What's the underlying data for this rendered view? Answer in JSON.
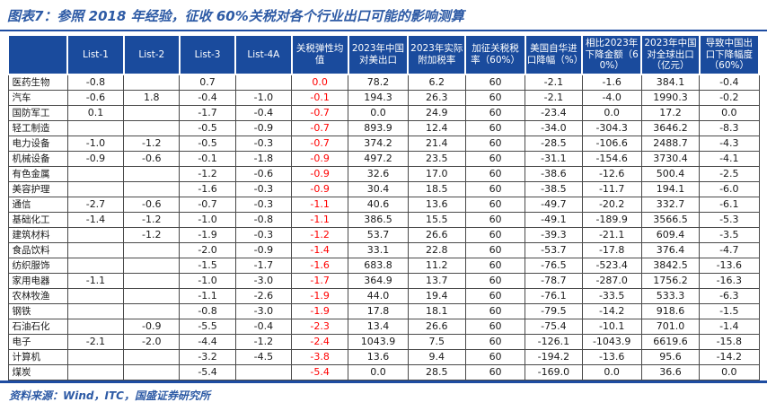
{
  "title": "图表7：参照 2018 年经验，征收 60%关税对各个行业出口可能的影响测算",
  "source": "资料来源：Wind，ITC，国盛证券研究所",
  "colors": {
    "header_bg": "#1a4b9d",
    "title_blue": "#2d5aa5",
    "rule_blue": "#1e4ca1",
    "elasticity_red": "#ff0000"
  },
  "chart_data": {
    "type": "table",
    "title": "参照2018年经验，征收60%关税对各个行业出口可能的影响测算",
    "red_column_index": 4,
    "columns": [
      "",
      "List-1",
      "List-2",
      "List-3",
      "List-4A",
      "关税弹性均值",
      "2023年中国对美出口",
      "2023年实际附加税率",
      "加征关税税率（60%）",
      "美国自华进口降幅（%）",
      "相比2023年下降金额（60%）",
      "2023年中国对全球出口（亿元）",
      "导致中国出口下降幅度（60%）"
    ],
    "rows": [
      {
        "industry": "医药生物",
        "values": [
          "-0.8",
          "",
          "0.7",
          "",
          "0.0",
          "78.2",
          "6.2",
          "60",
          "-2.1",
          "-1.6",
          "384.1",
          "-0.4"
        ]
      },
      {
        "industry": "汽车",
        "values": [
          "-0.6",
          "1.8",
          "-0.4",
          "-1.0",
          "-0.1",
          "194.3",
          "26.3",
          "60",
          "-2.1",
          "-4.0",
          "1990.3",
          "-0.2"
        ]
      },
      {
        "industry": "国防军工",
        "values": [
          "0.1",
          "",
          "-1.7",
          "-0.4",
          "-0.7",
          "0.0",
          "24.9",
          "60",
          "-23.4",
          "0.0",
          "17.2",
          "0.0"
        ]
      },
      {
        "industry": "轻工制造",
        "values": [
          "",
          "",
          "-0.5",
          "-0.9",
          "-0.7",
          "893.9",
          "12.4",
          "60",
          "-34.0",
          "-304.3",
          "3646.2",
          "-8.3"
        ]
      },
      {
        "industry": "电力设备",
        "values": [
          "-1.0",
          "-1.2",
          "-0.5",
          "-0.3",
          "-0.7",
          "374.2",
          "21.4",
          "60",
          "-28.5",
          "-106.6",
          "2488.7",
          "-4.3"
        ]
      },
      {
        "industry": "机械设备",
        "values": [
          "-0.9",
          "-0.6",
          "-0.1",
          "-1.8",
          "-0.9",
          "497.2",
          "23.5",
          "60",
          "-31.1",
          "-154.6",
          "3730.4",
          "-4.1"
        ]
      },
      {
        "industry": "有色金属",
        "values": [
          "",
          "",
          "-1.2",
          "-0.6",
          "-0.9",
          "32.6",
          "17.0",
          "60",
          "-38.6",
          "-12.6",
          "500.4",
          "-2.5"
        ]
      },
      {
        "industry": "美容护理",
        "values": [
          "",
          "",
          "-1.6",
          "-0.3",
          "-0.9",
          "30.4",
          "18.5",
          "60",
          "-38.5",
          "-11.7",
          "194.1",
          "-6.0"
        ]
      },
      {
        "industry": "通信",
        "values": [
          "-2.7",
          "-0.6",
          "-0.7",
          "-0.3",
          "-1.1",
          "40.6",
          "13.6",
          "60",
          "-49.7",
          "-20.2",
          "332.7",
          "-6.1"
        ]
      },
      {
        "industry": "基础化工",
        "values": [
          "-1.4",
          "-1.2",
          "-1.0",
          "-0.8",
          "-1.1",
          "386.5",
          "15.5",
          "60",
          "-49.1",
          "-189.9",
          "3566.5",
          "-5.3"
        ]
      },
      {
        "industry": "建筑材料",
        "values": [
          "",
          "-1.2",
          "-1.9",
          "-0.3",
          "-1.2",
          "53.7",
          "26.6",
          "60",
          "-39.3",
          "-21.1",
          "609.4",
          "-3.5"
        ]
      },
      {
        "industry": "食品饮料",
        "values": [
          "",
          "",
          "-2.0",
          "-0.9",
          "-1.4",
          "33.1",
          "22.8",
          "60",
          "-53.7",
          "-17.8",
          "376.4",
          "-4.7"
        ]
      },
      {
        "industry": "纺织服饰",
        "values": [
          "",
          "",
          "-1.5",
          "-1.7",
          "-1.6",
          "683.8",
          "11.2",
          "60",
          "-76.5",
          "-523.4",
          "3842.5",
          "-13.6"
        ]
      },
      {
        "industry": "家用电器",
        "values": [
          "-1.1",
          "",
          "-1.0",
          "-3.0",
          "-1.7",
          "364.9",
          "13.7",
          "60",
          "-78.7",
          "-287.0",
          "1756.2",
          "-16.3"
        ]
      },
      {
        "industry": "农林牧渔",
        "values": [
          "",
          "",
          "-1.1",
          "-2.6",
          "-1.9",
          "44.0",
          "19.4",
          "60",
          "-76.1",
          "-33.5",
          "533.3",
          "-6.3"
        ]
      },
      {
        "industry": "钢铁",
        "values": [
          "",
          "",
          "-0.8",
          "-3.0",
          "-1.9",
          "17.8",
          "18.1",
          "60",
          "-79.5",
          "-14.2",
          "918.6",
          "-1.5"
        ]
      },
      {
        "industry": "石油石化",
        "values": [
          "",
          "-0.9",
          "-5.5",
          "-0.4",
          "-2.3",
          "13.4",
          "26.6",
          "60",
          "-75.4",
          "-10.1",
          "701.0",
          "-1.4"
        ]
      },
      {
        "industry": "电子",
        "values": [
          "-2.1",
          "-2.0",
          "-4.4",
          "-1.2",
          "-2.4",
          "1043.9",
          "7.5",
          "60",
          "-126.1",
          "-1043.9",
          "6619.6",
          "-15.8"
        ]
      },
      {
        "industry": "计算机",
        "values": [
          "",
          "",
          "-3.2",
          "-4.5",
          "-3.8",
          "13.6",
          "9.4",
          "60",
          "-194.2",
          "-13.6",
          "95.6",
          "-14.2"
        ]
      },
      {
        "industry": "煤炭",
        "values": [
          "",
          "",
          "-5.4",
          "",
          "-5.4",
          "0.0",
          "28.5",
          "60",
          "-169.0",
          "0.0",
          "36.6",
          "0.0"
        ]
      }
    ]
  }
}
